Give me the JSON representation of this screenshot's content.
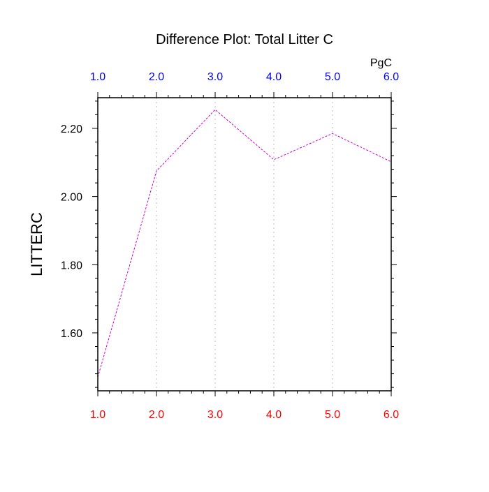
{
  "chart_data": {
    "type": "line",
    "title": "Difference Plot: Total Litter C",
    "units_label": "PgC",
    "ylabel": "LITTERC",
    "xlabel": "",
    "xlim": [
      1,
      6
    ],
    "ylim": [
      1.43,
      2.29
    ],
    "x_ticks": [
      "1.0",
      "2.0",
      "3.0",
      "4.0",
      "5.0",
      "6.0"
    ],
    "y_ticks": [
      "1.60",
      "1.80",
      "2.00",
      "2.20"
    ],
    "y_tick_values": [
      1.6,
      1.8,
      2.0,
      2.2
    ],
    "grid": "vertical dotted at major x ticks",
    "series": [
      {
        "x": [
          1,
          2,
          3,
          4,
          5,
          6
        ],
        "values": [
          1.47,
          2.075,
          2.255,
          2.108,
          2.185,
          2.102
        ],
        "color": "#cc00cc",
        "style": "dashed"
      }
    ],
    "colors": {
      "top_tick_labels": "#0000ff",
      "bottom_tick_labels": "#ff0000",
      "grid": "#bbbbbb",
      "axes": "#000000"
    }
  }
}
